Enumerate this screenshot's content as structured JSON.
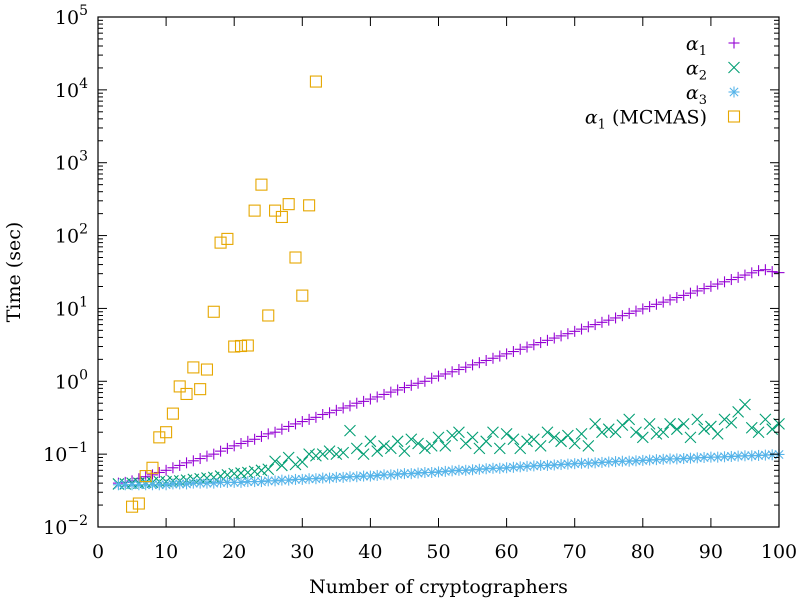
{
  "chart_data": {
    "type": "scatter",
    "xlabel": "Number of cryptographers",
    "ylabel": "Time (sec)",
    "xlim": [
      0,
      100
    ],
    "ylim": [
      0.01,
      100000
    ],
    "yscale": "log",
    "xticks": [
      0,
      10,
      20,
      30,
      40,
      50,
      60,
      70,
      80,
      90,
      100
    ],
    "yticks": [
      {
        "value": 0.01,
        "base": "10",
        "exp": "−2"
      },
      {
        "value": 0.1,
        "base": "10",
        "exp": "−1"
      },
      {
        "value": 1,
        "base": "10",
        "exp": "0"
      },
      {
        "value": 10,
        "base": "10",
        "exp": "1"
      },
      {
        "value": 100,
        "base": "10",
        "exp": "2"
      },
      {
        "value": 1000,
        "base": "10",
        "exp": "3"
      },
      {
        "value": 10000,
        "base": "10",
        "exp": "4"
      },
      {
        "value": 100000,
        "base": "10",
        "exp": "5"
      }
    ],
    "grid": false,
    "legend_position": "top-right",
    "series": [
      {
        "name": "α1",
        "label_main": "α",
        "label_sub": "1",
        "label_suffix": "",
        "marker": "plus",
        "color": "#9400d3",
        "x": [
          3,
          4,
          5,
          6,
          7,
          8,
          9,
          10,
          11,
          12,
          13,
          14,
          15,
          16,
          17,
          18,
          19,
          20,
          21,
          22,
          23,
          24,
          25,
          26,
          27,
          28,
          29,
          30,
          31,
          32,
          33,
          34,
          35,
          36,
          37,
          38,
          39,
          40,
          41,
          42,
          43,
          44,
          45,
          46,
          47,
          48,
          49,
          50,
          51,
          52,
          53,
          54,
          55,
          56,
          57,
          58,
          59,
          60,
          61,
          62,
          63,
          64,
          65,
          66,
          67,
          68,
          69,
          70,
          71,
          72,
          73,
          74,
          75,
          76,
          77,
          78,
          79,
          80,
          81,
          82,
          83,
          84,
          85,
          86,
          87,
          88,
          89,
          90,
          91,
          92,
          93,
          94,
          95,
          96,
          97,
          98,
          99,
          100
        ],
        "y": [
          0.04,
          0.041,
          0.043,
          0.046,
          0.049,
          0.052,
          0.056,
          0.06,
          0.065,
          0.07,
          0.076,
          0.081,
          0.087,
          0.094,
          0.1,
          0.11,
          0.12,
          0.13,
          0.14,
          0.15,
          0.16,
          0.175,
          0.19,
          0.2,
          0.22,
          0.24,
          0.26,
          0.28,
          0.3,
          0.32,
          0.35,
          0.37,
          0.4,
          0.43,
          0.46,
          0.5,
          0.53,
          0.57,
          0.61,
          0.66,
          0.71,
          0.76,
          0.82,
          0.88,
          0.94,
          1.0,
          1.1,
          1.18,
          1.26,
          1.35,
          1.45,
          1.56,
          1.68,
          1.8,
          1.93,
          2.07,
          2.22,
          2.38,
          2.56,
          2.75,
          2.95,
          3.17,
          3.4,
          3.65,
          3.92,
          4.2,
          4.5,
          4.85,
          5.2,
          5.6,
          6.0,
          6.45,
          6.9,
          7.4,
          7.95,
          8.55,
          9.2,
          9.85,
          10.6,
          11.4,
          12.2,
          13.1,
          14.1,
          15.1,
          16.2,
          17.4,
          18.7,
          20.1,
          21.6,
          23.2,
          24.9,
          26.7,
          28.7,
          30.8,
          33.0,
          34.0,
          32.0,
          31.0
        ]
      },
      {
        "name": "α2",
        "label_main": "α",
        "label_sub": "2",
        "label_suffix": "",
        "marker": "cross",
        "color": "#009e73",
        "x": [
          3,
          4,
          5,
          6,
          7,
          8,
          9,
          10,
          11,
          12,
          13,
          14,
          15,
          16,
          17,
          18,
          19,
          20,
          21,
          22,
          23,
          24,
          25,
          26,
          27,
          28,
          29,
          30,
          31,
          32,
          33,
          34,
          35,
          36,
          37,
          38,
          39,
          40,
          41,
          42,
          43,
          44,
          45,
          46,
          47,
          48,
          49,
          50,
          51,
          52,
          53,
          54,
          55,
          56,
          57,
          58,
          59,
          60,
          61,
          62,
          63,
          64,
          65,
          66,
          67,
          68,
          69,
          70,
          71,
          72,
          73,
          74,
          75,
          76,
          77,
          78,
          79,
          80,
          81,
          82,
          83,
          84,
          85,
          86,
          87,
          88,
          89,
          90,
          91,
          92,
          93,
          94,
          95,
          96,
          97,
          98,
          99,
          100
        ],
        "y": [
          0.039,
          0.039,
          0.04,
          0.04,
          0.041,
          0.041,
          0.042,
          0.042,
          0.043,
          0.043,
          0.044,
          0.045,
          0.046,
          0.047,
          0.048,
          0.05,
          0.052,
          0.054,
          0.055,
          0.056,
          0.058,
          0.06,
          0.062,
          0.08,
          0.07,
          0.09,
          0.072,
          0.078,
          0.1,
          0.095,
          0.1,
          0.11,
          0.1,
          0.105,
          0.21,
          0.12,
          0.1,
          0.15,
          0.11,
          0.13,
          0.12,
          0.15,
          0.11,
          0.16,
          0.14,
          0.12,
          0.13,
          0.17,
          0.13,
          0.18,
          0.2,
          0.14,
          0.17,
          0.12,
          0.15,
          0.2,
          0.12,
          0.19,
          0.16,
          0.12,
          0.15,
          0.16,
          0.13,
          0.2,
          0.17,
          0.15,
          0.18,
          0.14,
          0.19,
          0.13,
          0.26,
          0.2,
          0.22,
          0.2,
          0.25,
          0.3,
          0.2,
          0.17,
          0.26,
          0.19,
          0.2,
          0.26,
          0.22,
          0.26,
          0.17,
          0.3,
          0.22,
          0.24,
          0.19,
          0.3,
          0.27,
          0.38,
          0.48,
          0.23,
          0.2,
          0.3,
          0.22,
          0.26
        ]
      },
      {
        "name": "α3",
        "label_main": "α",
        "label_sub": "3",
        "label_suffix": "",
        "marker": "star",
        "color": "#56b4e9",
        "x": [
          3,
          4,
          5,
          6,
          7,
          8,
          9,
          10,
          11,
          12,
          13,
          14,
          15,
          16,
          17,
          18,
          19,
          20,
          21,
          22,
          23,
          24,
          25,
          26,
          27,
          28,
          29,
          30,
          31,
          32,
          33,
          34,
          35,
          36,
          37,
          38,
          39,
          40,
          41,
          42,
          43,
          44,
          45,
          46,
          47,
          48,
          49,
          50,
          51,
          52,
          53,
          54,
          55,
          56,
          57,
          58,
          59,
          60,
          61,
          62,
          63,
          64,
          65,
          66,
          67,
          68,
          69,
          70,
          71,
          72,
          73,
          74,
          75,
          76,
          77,
          78,
          79,
          80,
          81,
          82,
          83,
          84,
          85,
          86,
          87,
          88,
          89,
          90,
          91,
          92,
          93,
          94,
          95,
          96,
          97,
          98,
          99,
          100
        ],
        "y": [
          0.038,
          0.038,
          0.038,
          0.038,
          0.038,
          0.038,
          0.038,
          0.038,
          0.039,
          0.039,
          0.039,
          0.04,
          0.04,
          0.04,
          0.04,
          0.041,
          0.041,
          0.041,
          0.041,
          0.042,
          0.042,
          0.042,
          0.043,
          0.043,
          0.044,
          0.044,
          0.045,
          0.045,
          0.046,
          0.046,
          0.047,
          0.047,
          0.048,
          0.048,
          0.049,
          0.049,
          0.05,
          0.05,
          0.051,
          0.052,
          0.052,
          0.053,
          0.054,
          0.054,
          0.055,
          0.056,
          0.056,
          0.057,
          0.058,
          0.059,
          0.06,
          0.06,
          0.061,
          0.062,
          0.063,
          0.064,
          0.064,
          0.065,
          0.066,
          0.067,
          0.068,
          0.069,
          0.07,
          0.07,
          0.071,
          0.072,
          0.073,
          0.074,
          0.075,
          0.075,
          0.076,
          0.077,
          0.078,
          0.079,
          0.08,
          0.08,
          0.081,
          0.082,
          0.083,
          0.084,
          0.085,
          0.086,
          0.086,
          0.087,
          0.088,
          0.089,
          0.09,
          0.091,
          0.091,
          0.092,
          0.093,
          0.094,
          0.095,
          0.095,
          0.096,
          0.097,
          0.098,
          0.099
        ]
      },
      {
        "name": "α1 (MCMAS)",
        "label_main": "α",
        "label_sub": "1",
        "label_suffix": " (MCMAS)",
        "marker": "square",
        "color": "#e6a700",
        "x": [
          5,
          6,
          7,
          8,
          9,
          10,
          11,
          12,
          13,
          14,
          15,
          16,
          17,
          18,
          19,
          20,
          21,
          22,
          23,
          24,
          25,
          26,
          27,
          28,
          29,
          30,
          31,
          32
        ],
        "y": [
          0.019,
          0.021,
          0.05,
          0.065,
          0.17,
          0.2,
          0.36,
          0.85,
          0.67,
          1.55,
          0.78,
          1.45,
          9.0,
          80.0,
          90.0,
          3.0,
          3.05,
          3.1,
          220.0,
          500.0,
          8.0,
          220.0,
          180.0,
          270.0,
          50.0,
          15.0,
          260.0,
          13000.0
        ]
      }
    ]
  }
}
